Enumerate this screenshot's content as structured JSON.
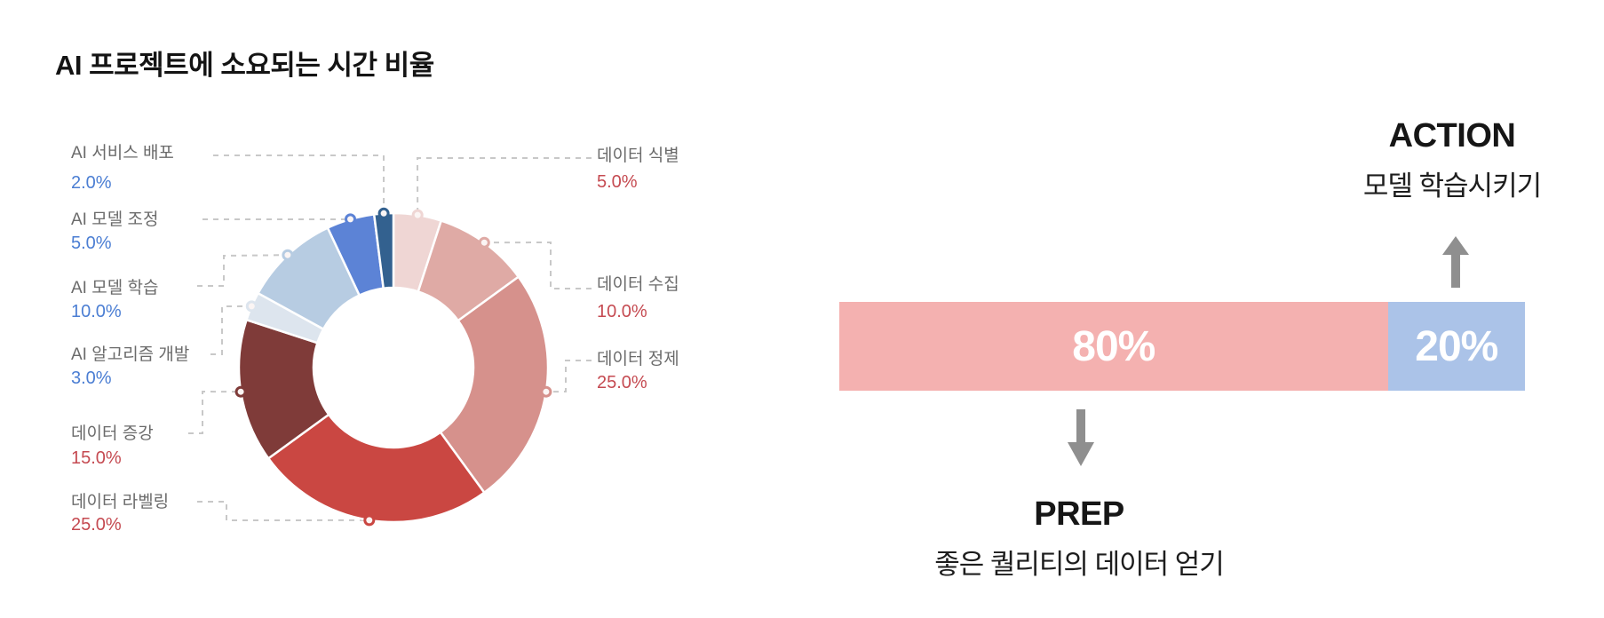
{
  "title": "AI 프로젝트에 소요되는 시간 비율",
  "colors": {
    "title_text": "#141414",
    "label_gray": "#6b6b6b",
    "connector_gray": "#c8c8c8",
    "dot_fill": "#fbf5f4",
    "arrow_gray": "#8f8f8f",
    "bar_text_white": "#ffffff",
    "value_blue": "#4b7ed3",
    "value_red": "#c54a51"
  },
  "chart_data": [
    {
      "type": "pie",
      "title": "AI 프로젝트에 소요되는 시간 비율",
      "donut": true,
      "start_angle_deg": 0,
      "direction": "clockwise",
      "legend_position": "callout-labels",
      "slices": [
        {
          "label": "데이터 식별",
          "value": 5.0,
          "display": "5.0%",
          "color": "#efd6d4",
          "value_color": "#c54a51",
          "label_side": "right"
        },
        {
          "label": "데이터 수집",
          "value": 10.0,
          "display": "10.0%",
          "color": "#dfaaa5",
          "value_color": "#c54a51",
          "label_side": "right"
        },
        {
          "label": "데이터 정제",
          "value": 25.0,
          "display": "25.0%",
          "color": "#d6918c",
          "value_color": "#c54a51",
          "label_side": "right"
        },
        {
          "label": "데이터 라벨링",
          "value": 25.0,
          "display": "25.0%",
          "color": "#ca4742",
          "value_color": "#c54a51",
          "label_side": "left"
        },
        {
          "label": "데이터 증강",
          "value": 15.0,
          "display": "15.0%",
          "color": "#7f3b39",
          "value_color": "#c54a51",
          "label_side": "left"
        },
        {
          "label": "AI 알고리즘 개발",
          "value": 3.0,
          "display": "3.0%",
          "color": "#dde5ee",
          "value_color": "#4b7ed3",
          "label_side": "left"
        },
        {
          "label": "AI 모델 학습",
          "value": 10.0,
          "display": "10.0%",
          "color": "#b7cce2",
          "value_color": "#4b7ed3",
          "label_side": "left"
        },
        {
          "label": "AI 모델 조정",
          "value": 5.0,
          "display": "5.0%",
          "color": "#5c83d6",
          "value_color": "#4b7ed3",
          "label_side": "left"
        },
        {
          "label": "AI 서비스 배포",
          "value": 2.0,
          "display": "2.0%",
          "color": "#33618f",
          "value_color": "#4b7ed3",
          "label_side": "left"
        }
      ]
    },
    {
      "type": "bar",
      "stacked": true,
      "orientation": "horizontal",
      "segments": [
        {
          "label": "PREP",
          "value": 80,
          "display": "80%",
          "color": "#f4b1b0"
        },
        {
          "label": "ACTION",
          "value": 20,
          "display": "20%",
          "color": "#abc3e8"
        }
      ],
      "annotations": {
        "action": {
          "title": "ACTION",
          "subtitle": "모델 학습시키기",
          "position": "above 20% segment"
        },
        "prep": {
          "title": "PREP",
          "subtitle": "좋은 퀄리티의 데이터 얻기",
          "position": "below 80% segment"
        }
      }
    }
  ]
}
